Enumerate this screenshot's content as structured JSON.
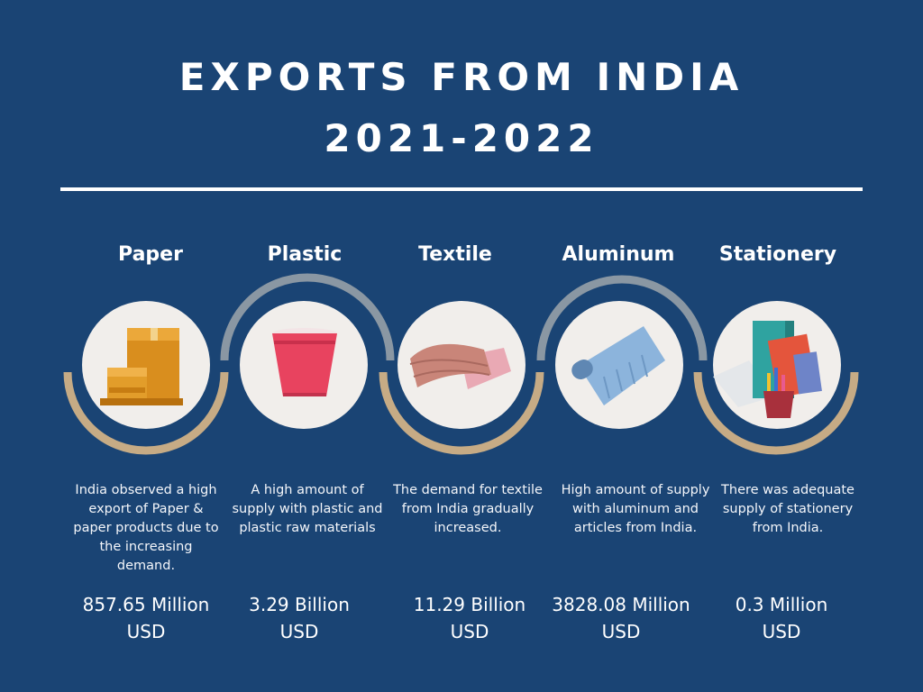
{
  "title": {
    "line1": "EXPORTS FROM INDIA",
    "line2": "2021-2022"
  },
  "items": [
    {
      "category": "Paper",
      "icon": "paper-boxes-icon",
      "description": "India observed a high export of Paper & paper products due to the increasing demand.",
      "amount_value": "857.65 Million",
      "amount_unit": "USD"
    },
    {
      "category": "Plastic",
      "icon": "plastic-cup-icon",
      "description": "A high amount of supply with plastic and plastic raw materials",
      "amount_value": "3.29 Billion",
      "amount_unit": "USD"
    },
    {
      "category": "Textile",
      "icon": "folded-textile-icon",
      "description": "The demand for textile from India gradually increased.",
      "amount_value": "11.29 Billion",
      "amount_unit": "USD"
    },
    {
      "category": "Aluminum",
      "icon": "aluminum-foil-roll-icon",
      "description": "High amount of supply with aluminum and articles from India.",
      "amount_value": "3828.08 Million",
      "amount_unit": "USD"
    },
    {
      "category": "Stationery",
      "icon": "stationery-books-pencils-icon",
      "description": "There was adequate supply of stationery from India.",
      "amount_value": "0.3 Million",
      "amount_unit": "USD"
    }
  ],
  "colors": {
    "background": "#1a4474",
    "arc_gold": "#c6ab85",
    "arc_gray": "#8a97a3",
    "circle_fill": "#f1eeeb"
  }
}
